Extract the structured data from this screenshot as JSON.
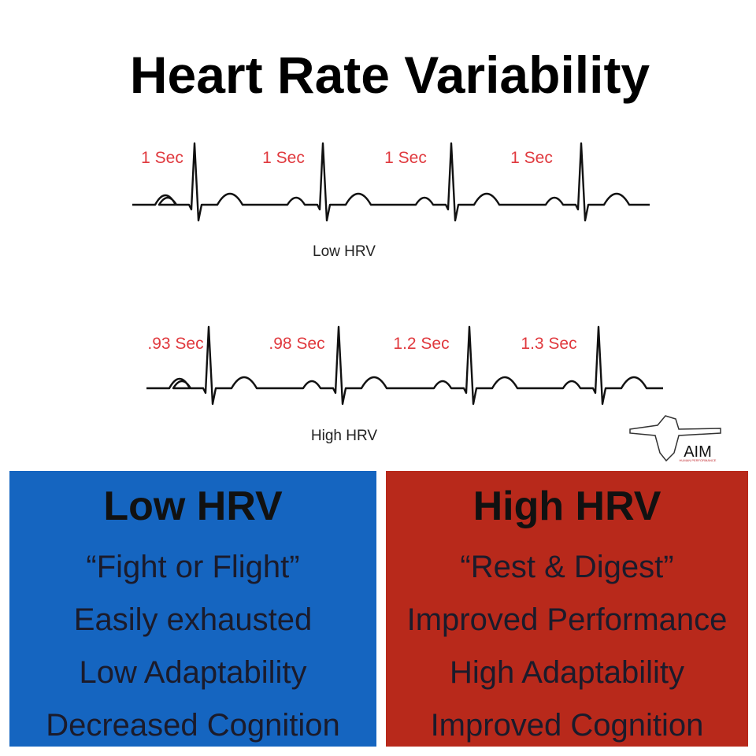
{
  "header": {
    "title": "Heart Rate Variability"
  },
  "strips": [
    {
      "intervals": [
        "1 Sec",
        "1 Sec",
        "1 Sec",
        "1 Sec"
      ],
      "caption": "Low HRV"
    },
    {
      "intervals": [
        ".93 Sec",
        ".98 Sec",
        "1.2 Sec",
        "1.3 Sec"
      ],
      "caption": "High HRV"
    }
  ],
  "logo": {
    "name": "AIM",
    "tagline": "HUMAN PERFORMANCE"
  },
  "panels": [
    {
      "heading": "Low HRV",
      "items": [
        "“Fight or Flight”",
        "Easily exhausted",
        "Low Adaptability",
        "Decreased Cognition"
      ]
    },
    {
      "heading": "High HRV",
      "items": [
        "“Rest & Digest”",
        "Improved Performance",
        "High Adaptability",
        "Improved Cognition"
      ]
    }
  ]
}
